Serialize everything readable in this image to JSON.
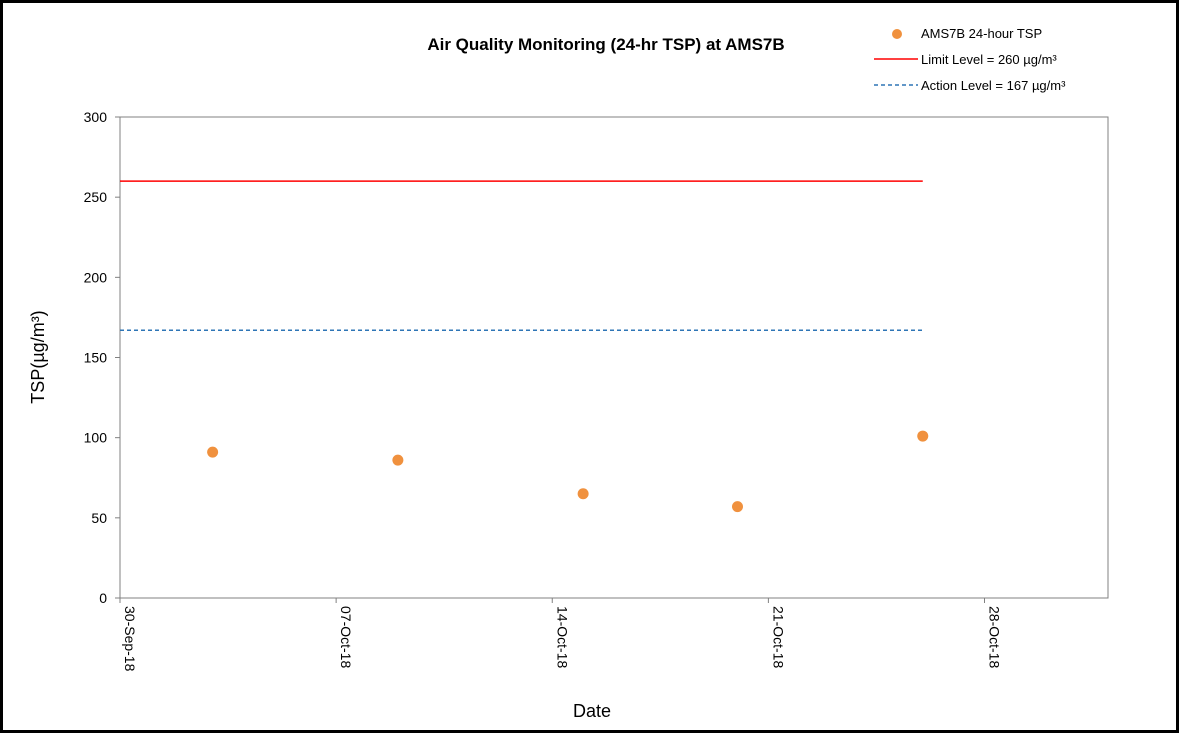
{
  "chart_data": {
    "type": "scatter",
    "title": "Air Quality Monitoring (24-hr TSP) at AMS7B",
    "xlabel": "Date",
    "ylabel": "TSP(µg/m³)",
    "xlim": [
      "30-Sep-18",
      "01-Nov-18"
    ],
    "ylim": [
      0,
      300
    ],
    "x_ticks": [
      "30-Sep-18",
      "07-Oct-18",
      "14-Oct-18",
      "21-Oct-18",
      "28-Oct-18"
    ],
    "y_ticks": [
      0,
      50,
      100,
      150,
      200,
      250,
      300
    ],
    "grid": false,
    "legend_position": "top-right",
    "series": [
      {
        "name": "AMS7B 24-hour TSP",
        "kind": "scatter",
        "color": "#f0913e",
        "points": [
          {
            "x": "03-Oct-18",
            "y": 91
          },
          {
            "x": "09-Oct-18",
            "y": 86
          },
          {
            "x": "15-Oct-18",
            "y": 65
          },
          {
            "x": "20-Oct-18",
            "y": 57
          },
          {
            "x": "26-Oct-18",
            "y": 101
          }
        ]
      },
      {
        "name": "Limit Level = 260 µg/m³",
        "kind": "line",
        "style": "solid",
        "color": "#ff0000",
        "points": [
          {
            "x": "30-Sep-18",
            "y": 260
          },
          {
            "x": "26-Oct-18",
            "y": 260
          }
        ]
      },
      {
        "name": "Action Level = 167 µg/m³",
        "kind": "line",
        "style": "dashed",
        "color": "#2e75b6",
        "points": [
          {
            "x": "30-Sep-18",
            "y": 167
          },
          {
            "x": "26-Oct-18",
            "y": 167
          }
        ]
      }
    ]
  }
}
